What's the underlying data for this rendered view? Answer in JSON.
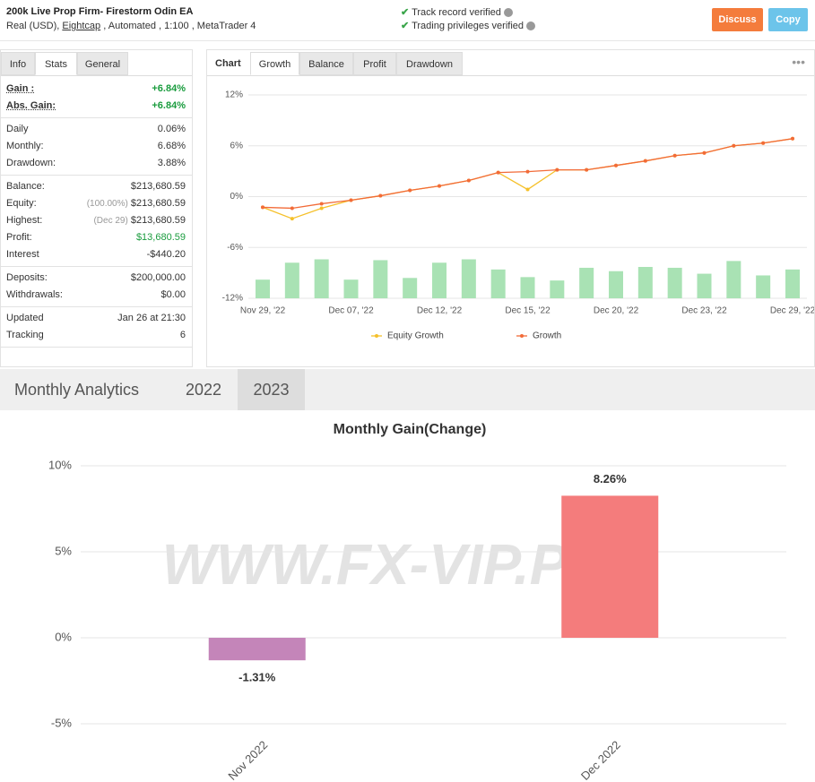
{
  "header": {
    "title": "200k Live Prop Firm- Firestorm Odin EA",
    "account_type": "Real (USD),",
    "broker": "Eightcap",
    "details": ", Automated , 1:100 , MetaTrader 4",
    "verified": [
      "Track record verified",
      "Trading privileges verified"
    ],
    "buttons": [
      "Discuss",
      "Copy"
    ]
  },
  "stats_panel": {
    "tabs": [
      "Info",
      "Stats",
      "General"
    ],
    "active_tab": 1,
    "sections": [
      [
        {
          "label": "Gain :",
          "value": "+6.84%",
          "color": "#1a9c3e"
        },
        {
          "label": "Abs. Gain:",
          "value": "+6.84%",
          "color": "#1a9c3e"
        }
      ],
      [
        {
          "label": "Daily",
          "value": "0.06%"
        },
        {
          "label": "Monthly:",
          "value": "6.68%"
        },
        {
          "label": "Drawdown:",
          "value": "3.88%"
        }
      ],
      [
        {
          "label": "Balance:",
          "value": "$213,680.59"
        },
        {
          "label": "Equity:",
          "note": "(100.00%)",
          "value": "$213,680.59"
        },
        {
          "label": "Highest:",
          "note": "(Dec 29)",
          "value": "$213,680.59"
        },
        {
          "label": "Profit:",
          "value": "$13,680.59",
          "color": "#1a9c3e"
        },
        {
          "label": "Interest",
          "value": "-$440.20"
        }
      ],
      [
        {
          "label": "Deposits:",
          "value": "$200,000.00"
        },
        {
          "label": "Withdrawals:",
          "value": "$0.00"
        }
      ],
      [
        {
          "label": "Updated",
          "value": "Jan 26 at 21:30"
        },
        {
          "label": "Tracking",
          "value": "6"
        }
      ]
    ]
  },
  "chart_panel": {
    "label": "Chart",
    "tabs": [
      "Growth",
      "Balance",
      "Profit",
      "Drawdown"
    ],
    "active_tab": 0
  },
  "monthly": {
    "title": "Monthly Analytics",
    "tabs": [
      "2022",
      "2023"
    ],
    "active_tab": 1
  },
  "watermark": "WWW.FX-VIP.PRO",
  "chart_data": [
    {
      "type": "line",
      "categories": [
        "Nov 29, '22",
        null,
        null,
        "Dec 07, '22",
        null,
        null,
        "Dec 12, '22",
        null,
        null,
        "Dec 15, '22",
        null,
        null,
        "Dec 20, '22",
        null,
        null,
        "Dec 23, '22",
        null,
        null,
        "Dec 29, '22"
      ],
      "series": [
        {
          "type": "bar",
          "color": "#a9e2b4",
          "values": [
            -9.8,
            -7.8,
            -7.4,
            -9.8,
            -7.5,
            -9.6,
            -7.8,
            -7.4,
            -8.6,
            -9.5,
            -9.9,
            -8.4,
            -8.8,
            -8.3,
            -8.4,
            -9.1,
            -7.6,
            -9.3,
            -8.6
          ]
        },
        {
          "name": "Equity Growth",
          "color": "#f5c02a",
          "values": [
            -1.26,
            -2.6,
            -1.37,
            -0.42,
            0.1,
            0.74,
            1.26,
            1.9,
            2.84,
            0.84,
            3.16,
            3.16,
            3.68,
            4.21,
            4.84,
            5.16,
            6.0,
            6.32,
            6.84
          ]
        },
        {
          "name": "Growth",
          "color": "#f26b38",
          "values": [
            -1.26,
            -1.37,
            -0.84,
            -0.42,
            0.1,
            0.74,
            1.26,
            1.9,
            2.84,
            2.95,
            3.16,
            3.16,
            3.68,
            4.21,
            4.84,
            5.16,
            6.0,
            6.32,
            6.84
          ]
        }
      ],
      "ylim": [
        -12,
        12
      ],
      "yticks": [
        {
          "value": 12,
          "label": "12%"
        },
        {
          "value": 6,
          "label": "6%"
        },
        {
          "value": 0,
          "label": "0%"
        },
        {
          "value": -6,
          "label": "-6%"
        },
        {
          "value": -12,
          "label": "-12%"
        }
      ],
      "grid": true
    },
    {
      "type": "bar",
      "title": "Monthly Gain(Change)",
      "categories": [
        "Nov 2022",
        "Dec 2022"
      ],
      "values": [
        -1.31,
        8.26
      ],
      "value_labels": [
        "-1.31%",
        "8.26%"
      ],
      "colors": [
        "#c485b9",
        "#f47c7c"
      ],
      "ylim": [
        -5,
        10
      ],
      "yticks": [
        {
          "value": 10,
          "label": "10%"
        },
        {
          "value": 5,
          "label": "5%"
        },
        {
          "value": 0,
          "label": "0%"
        },
        {
          "value": -5,
          "label": "-5%"
        }
      ],
      "grid": true
    }
  ]
}
